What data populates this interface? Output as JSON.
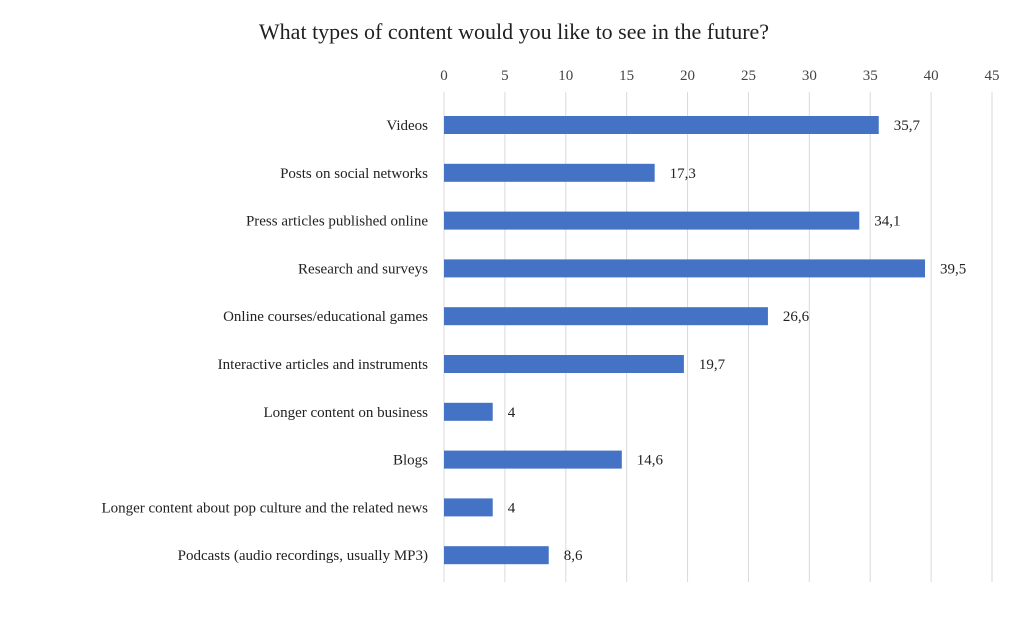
{
  "chart_data": {
    "type": "bar",
    "orientation": "horizontal",
    "title": "What types of content would you like to see in the future?",
    "categories": [
      "Videos",
      "Posts on social networks",
      "Press articles published online",
      "Research and surveys",
      "Online courses/educational games",
      "Interactive articles and instruments",
      "Longer content on business",
      "Blogs",
      "Longer content about pop culture and the related news",
      "Podcasts (audio recordings, usually MP3)"
    ],
    "values": [
      35.7,
      17.3,
      34.1,
      39.5,
      26.6,
      19.7,
      4,
      14.6,
      4,
      8.6
    ],
    "value_labels": [
      "35,7",
      "17,3",
      "34,1",
      "39,5",
      "26,6",
      "19,7",
      "4",
      "14,6",
      "4",
      "8,6"
    ],
    "xticks": [
      "0",
      "5",
      "10",
      "15",
      "20",
      "25",
      "30",
      "35",
      "40",
      "45"
    ],
    "xlim": [
      0,
      45
    ],
    "xaxis_position": "top",
    "grid": true,
    "bar_color": "#4472C4",
    "gridline_color": "#d9d9d9"
  }
}
